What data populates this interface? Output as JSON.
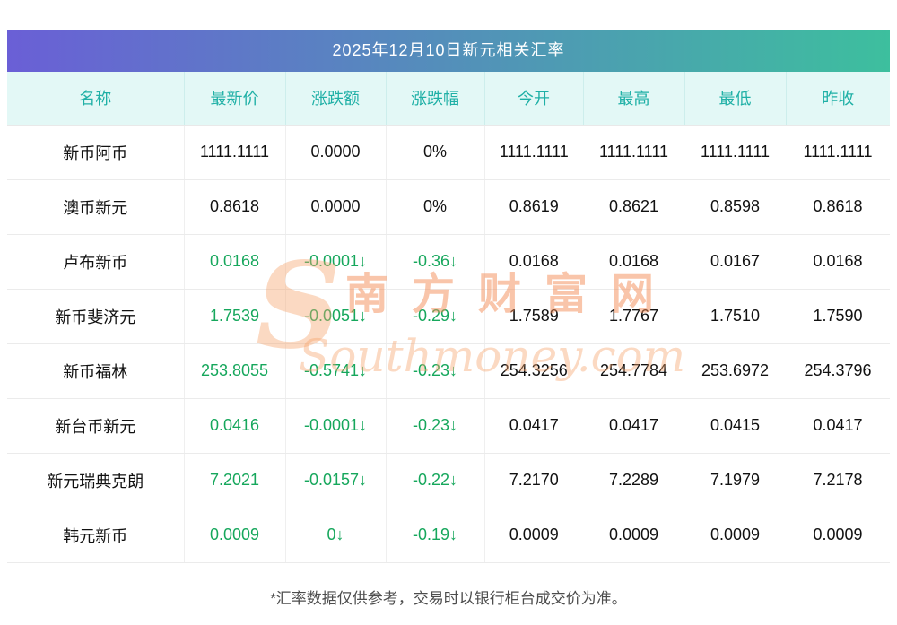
{
  "title": "2025年12月10日新元相关汇率",
  "footer": "*汇率数据仅供参考，交易时以银行柜台成交价为准。",
  "watermark": {
    "logo": "S",
    "cn": "南方财富网",
    "en": "Southmoney.com"
  },
  "colors": {
    "title_gradient_left": "#6a5fd6",
    "title_gradient_right": "#3dbf9e",
    "header_bg": "#e3f8f6",
    "header_fg": "#1fb0a6",
    "down_green": "#16a75c",
    "watermark_orange": "rgba(243,140,85,0.50)",
    "watermark_orange_light": "rgba(245,165,110,0.42)"
  },
  "table": {
    "columns": [
      {
        "key": "name",
        "label": "名称"
      },
      {
        "key": "latest",
        "label": "最新价"
      },
      {
        "key": "change",
        "label": "涨跌额"
      },
      {
        "key": "pct",
        "label": "涨跌幅"
      },
      {
        "key": "open",
        "label": "今开"
      },
      {
        "key": "high",
        "label": "最高"
      },
      {
        "key": "low",
        "label": "最低"
      },
      {
        "key": "prev",
        "label": "昨收"
      }
    ],
    "rows": [
      {
        "name": "新币阿币",
        "latest": "1111.1111",
        "change": "0.0000",
        "pct": "0%",
        "open": "1111.1111",
        "high": "1111.1111",
        "low": "1111.1111",
        "prev": "1111.1111",
        "trend": "flat"
      },
      {
        "name": "澳币新元",
        "latest": "0.8618",
        "change": "0.0000",
        "pct": "0%",
        "open": "0.8619",
        "high": "0.8621",
        "low": "0.8598",
        "prev": "0.8618",
        "trend": "flat"
      },
      {
        "name": "卢布新币",
        "latest": "0.0168",
        "change": "-0.0001↓",
        "pct": "-0.36↓",
        "open": "0.0168",
        "high": "0.0168",
        "low": "0.0167",
        "prev": "0.0168",
        "trend": "down"
      },
      {
        "name": "新币斐济元",
        "latest": "1.7539",
        "change": "-0.0051↓",
        "pct": "-0.29↓",
        "open": "1.7589",
        "high": "1.7767",
        "low": "1.7510",
        "prev": "1.7590",
        "trend": "down"
      },
      {
        "name": "新币福林",
        "latest": "253.8055",
        "change": "-0.5741↓",
        "pct": "-0.23↓",
        "open": "254.3256",
        "high": "254.7784",
        "low": "253.6972",
        "prev": "254.3796",
        "trend": "down"
      },
      {
        "name": "新台币新元",
        "latest": "0.0416",
        "change": "-0.0001↓",
        "pct": "-0.23↓",
        "open": "0.0417",
        "high": "0.0417",
        "low": "0.0415",
        "prev": "0.0417",
        "trend": "down"
      },
      {
        "name": "新元瑞典克朗",
        "latest": "7.2021",
        "change": "-0.0157↓",
        "pct": "-0.22↓",
        "open": "7.2170",
        "high": "7.2289",
        "low": "7.1979",
        "prev": "7.2178",
        "trend": "down"
      },
      {
        "name": "韩元新币",
        "latest": "0.0009",
        "change": "0↓",
        "pct": "-0.19↓",
        "open": "0.0009",
        "high": "0.0009",
        "low": "0.0009",
        "prev": "0.0009",
        "trend": "down"
      }
    ]
  }
}
